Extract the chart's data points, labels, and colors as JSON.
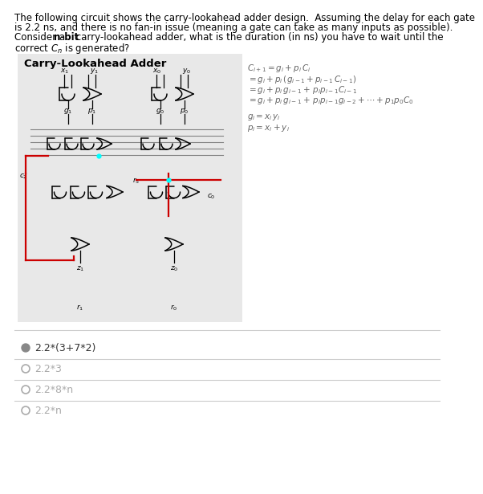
{
  "title": "Carry-Lookahead Adder",
  "q_line1": "The following circuit shows the carry-lookahead adder design.  Assuming the delay for each gate",
  "q_line2": "is 2.2 ns, and there is no fan-in issue (meaning a gate can take as many inputs as possible).",
  "q_line3a": "Consider a ",
  "q_line3b": "n-bit",
  "q_line3c": " carry-lookahead adder, what is the duration (in ns) you have to wait until the",
  "q_line4": "correct $C_n$ is generated?",
  "equations": [
    "$C_{i+1} = g_i + p_i\\, C_i$",
    "$= g_i + p_i\\,(g_{i-1} + p_{i-1}\\,C_{i-1})$",
    "$= g_i + p_i\\,g_{i-1} +\\, p_i p_{i-1} C_{i-1}$",
    "$= g_i + p_i\\,g_{i-1} +\\, p_i p_{i-1} g_{i-2} + \\cdots + p_1 p_0 C_0$"
  ],
  "gi_line": "$g_i = x_i\\, y_i$",
  "pi_line": "$p_i = x_i + y_i$",
  "options": [
    "2.2*(3+7*2)",
    "2.2*3",
    "2.2*8*n",
    "2.2*n"
  ],
  "correct_option": 0,
  "bg_color": "#ffffff",
  "circuit_bg": "#e8e8e8",
  "eq_color": "#666666",
  "opt_selected_color": "#333333",
  "opt_unselected_color": "#aaaaaa",
  "radio_selected_color": "#888888",
  "sep_color": "#cccccc",
  "red_color": "#cc0000",
  "gate_color": "#000000",
  "wire_gray": "#555555"
}
